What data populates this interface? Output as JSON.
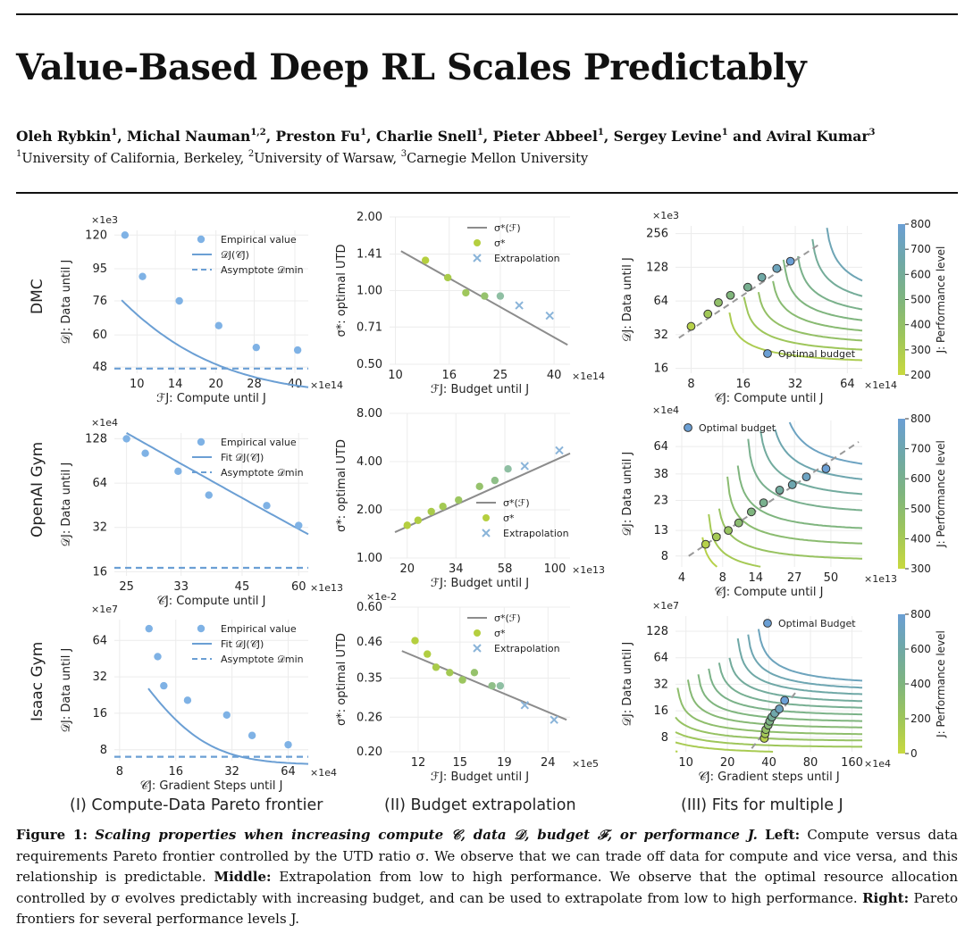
{
  "paper": {
    "title": "Value-Based Deep RL Scales Predictably",
    "authors": [
      {
        "name": "Oleh Rybkin",
        "sup": "1"
      },
      {
        "name": "Michal Nauman",
        "sup": "1,2"
      },
      {
        "name": "Preston Fu",
        "sup": "1"
      },
      {
        "name": "Charlie Snell",
        "sup": "1"
      },
      {
        "name": "Pieter Abbeel",
        "sup": "1"
      },
      {
        "name": "Sergey Levine",
        "sup": "1"
      },
      {
        "name": "Aviral Kumar",
        "sup": "3"
      }
    ],
    "affiliations": [
      {
        "sup": "1",
        "name": "University of California, Berkeley"
      },
      {
        "sup": "2",
        "name": "University of Warsaw"
      },
      {
        "sup": "3",
        "name": "Carnegie Mellon University"
      }
    ]
  },
  "figure": {
    "row_labels": [
      "DMC",
      "OpenAI Gym",
      "Isaac Gym"
    ],
    "column_labels": [
      "(I) Compute-Data Pareto frontier",
      "(II) Budget extrapolation",
      "(III) Fits for multiple J"
    ],
    "caption": {
      "label": "Figure 1:",
      "title": "Scaling properties when increasing compute 𝒞, data 𝒟, budget ℱ, or performance J.",
      "left_label": "Left:",
      "left_text": "Compute versus data requirements Pareto frontier controlled by the UTD ratio σ. We observe that we can trade off data for compute and vice versa, and this relationship is predictable.",
      "middle_label": "Middle:",
      "middle_text": "Extrapolation from low to high performance. We observe that the optimal resource allocation controlled by σ evolves predictably with increasing budget, and can be used to extrapolate from low to high performance.",
      "right_label": "Right:",
      "right_text": "Pareto frontiers for several performance levels J."
    }
  },
  "colors": {
    "blue": "#6b9fd4",
    "point_blue": "#7fb2e5",
    "gray_line": "#8c8c8c",
    "lime": "#b5cf3f",
    "sage": "#8fbfa3",
    "x_marker": "#8ab4d9",
    "cmap": [
      "#c8d93f",
      "#9ec65a",
      "#7fb57e",
      "#6fa8a6",
      "#6b9fd4"
    ]
  },
  "chart_data": [
    {
      "id": "dmc_pareto",
      "type": "line",
      "row": "DMC",
      "column": "I",
      "xscale": "log",
      "yscale": "log",
      "xlim": [
        8.2,
        45
      ],
      "ylim": [
        46,
        124
      ],
      "xticks": [
        10,
        14,
        20,
        28,
        40
      ],
      "xtick_labels": [
        "10",
        "14",
        "20",
        "28",
        "40"
      ],
      "x_mult": "×1e14",
      "yticks": [
        48,
        60,
        76,
        95,
        120
      ],
      "ytick_labels": [
        "48",
        "60",
        "76",
        "95",
        "120"
      ],
      "y_mult": "×1e3",
      "xlabel": "ℱJ: Compute until J",
      "ylabel": "𝒟J: Data until J",
      "legend": [
        "Empirical value",
        "𝒟J(𝒞J)",
        "Asymptote 𝒟min"
      ],
      "legend_pos": "top-right",
      "points": [
        [
          9,
          120
        ],
        [
          10.5,
          90
        ],
        [
          14.5,
          76
        ],
        [
          20.5,
          64
        ],
        [
          28.5,
          55
        ],
        [
          41,
          54
        ]
      ],
      "fit": {
        "a": 39,
        "b": 1200,
        "alpha": 1.6
      },
      "asymptote": 47.5
    },
    {
      "id": "gym_pareto",
      "type": "line",
      "row": "OpenAI Gym",
      "column": "I",
      "xscale": "log",
      "yscale": "log",
      "xlim": [
        23.5,
        63
      ],
      "ylim": [
        15,
        140
      ],
      "xticks": [
        25,
        33,
        45,
        60
      ],
      "xtick_labels": [
        "25",
        "33",
        "45",
        "60"
      ],
      "x_mult": "×1e13",
      "yticks": [
        16,
        32,
        64,
        128
      ],
      "ytick_labels": [
        "16",
        "32",
        "64",
        "128"
      ],
      "y_mult": "×1e4",
      "xlabel": "𝒞J: Compute until J",
      "ylabel": "𝒟J: Data until J",
      "legend": [
        "Empirical value",
        "Fit 𝒟J(𝒞J)",
        "Asymptote 𝒟min"
      ],
      "legend_pos": "top-right",
      "points": [
        [
          25,
          128
        ],
        [
          27.5,
          102
        ],
        [
          32.5,
          77
        ],
        [
          38,
          53
        ],
        [
          51,
          45
        ],
        [
          60,
          33
        ]
      ],
      "fit": {
        "a": 1.5,
        "b": 40000,
        "alpha": 1.76
      },
      "asymptote": 17
    },
    {
      "id": "isaac_pareto",
      "type": "line",
      "row": "Isaac Gym",
      "column": "I",
      "xscale": "log",
      "yscale": "log",
      "xlim": [
        7.5,
        82
      ],
      "ylim": [
        6.5,
        95
      ],
      "xticks": [
        8,
        16,
        32,
        64
      ],
      "xtick_labels": [
        "8",
        "16",
        "32",
        "64"
      ],
      "x_mult": "×1e4",
      "yticks": [
        8,
        16,
        32,
        64
      ],
      "ytick_labels": [
        "8",
        "16",
        "32",
        "64"
      ],
      "y_mult": "×1e7",
      "xlabel": "𝒞J: Gradient Steps until J",
      "ylabel": "𝒟J: Data until J",
      "legend": [
        "Empirical value",
        "Fit 𝒟J(𝒞J)",
        "Asymptote 𝒟min"
      ],
      "legend_pos": "top-right",
      "points": [
        [
          11.5,
          80
        ],
        [
          12.8,
          47
        ],
        [
          13.8,
          27
        ],
        [
          18.5,
          20.5
        ],
        [
          30,
          15.5
        ],
        [
          41,
          10.5
        ],
        [
          64,
          8.8
        ]
      ],
      "fit": {
        "a": 6,
        "b": 11000,
        "alpha": 2.6
      },
      "asymptote": 7
    },
    {
      "id": "dmc_budget",
      "type": "scatter",
      "row": "DMC",
      "column": "II",
      "xscale": "log",
      "yscale": "log",
      "xlim": [
        9.5,
        46
      ],
      "ylim": [
        0.5,
        2.0
      ],
      "xticks": [
        10,
        16,
        25,
        40
      ],
      "xtick_labels": [
        "10",
        "16",
        "25",
        "40"
      ],
      "x_mult": "×1e14",
      "yticks": [
        0.5,
        0.71,
        1.0,
        1.41,
        2.0
      ],
      "ytick_labels": [
        "0.50",
        "0.71",
        "1.00",
        "1.41",
        "2.00"
      ],
      "xlabel": "ℱJ: Budget until J",
      "ylabel": "σ*: optimal UTD",
      "legend": [
        "σ*(ℱ)",
        "σ*",
        "Extrapolation"
      ],
      "legend_pos": "top-right",
      "line": [
        [
          10.5,
          1.45
        ],
        [
          45,
          0.6
        ]
      ],
      "points": [
        [
          13,
          1.33
        ],
        [
          15.8,
          1.13
        ],
        [
          18.5,
          0.98
        ],
        [
          21.8,
          0.95
        ],
        [
          25,
          0.95
        ]
      ],
      "point_colors": [
        "#b5cf3f",
        "#a9cb4a",
        "#9fc75c",
        "#96c26c",
        "#8fbfa3"
      ],
      "extrapolation": [
        [
          29.5,
          0.87
        ],
        [
          38.5,
          0.79
        ]
      ]
    },
    {
      "id": "gym_budget",
      "type": "scatter",
      "row": "OpenAI Gym",
      "column": "II",
      "xscale": "log",
      "yscale": "log",
      "xlim": [
        16.5,
        118
      ],
      "ylim": [
        1.0,
        8.0
      ],
      "xticks": [
        20,
        34,
        58,
        100
      ],
      "xtick_labels": [
        "20",
        "34",
        "58",
        "100"
      ],
      "x_mult": "×1e13",
      "yticks": [
        1.0,
        2.0,
        4.0,
        8.0
      ],
      "ytick_labels": [
        "1.00",
        "2.00",
        "4.00",
        "8.00"
      ],
      "xlabel": "ℱJ: Budget until J",
      "ylabel": "σ*: optimal UTD",
      "legend": [
        "σ*(ℱ)",
        "σ*",
        "Extrapolation"
      ],
      "legend_pos": "bottom-right",
      "line": [
        [
          17.5,
          1.45
        ],
        [
          118,
          4.5
        ]
      ],
      "points": [
        [
          20,
          1.6
        ],
        [
          22.5,
          1.72
        ],
        [
          26,
          1.95
        ],
        [
          29.5,
          2.1
        ],
        [
          35,
          2.3
        ],
        [
          44,
          2.8
        ],
        [
          52,
          3.05
        ],
        [
          60,
          3.6
        ]
      ],
      "point_colors": [
        "#b5cf3f",
        "#b1ce42",
        "#a9cb4a",
        "#a3c953",
        "#9cc660",
        "#96c26c",
        "#8fbf88",
        "#8fbfa3"
      ],
      "extrapolation": [
        [
          72,
          3.75
        ],
        [
          105,
          4.7
        ]
      ]
    },
    {
      "id": "isaac_budget",
      "type": "scatter",
      "row": "Isaac Gym",
      "column": "II",
      "xscale": "log",
      "yscale": "log",
      "xlim": [
        10.3,
        27
      ],
      "ylim": [
        0.2,
        0.6
      ],
      "xticks": [
        12,
        15,
        19,
        24
      ],
      "xtick_labels": [
        "12",
        "15",
        "19",
        "24"
      ],
      "x_mult": "×1e5",
      "yticks": [
        0.2,
        0.26,
        0.35,
        0.46,
        0.6
      ],
      "ytick_labels": [
        "0.20",
        "0.26",
        "0.35",
        "0.46",
        "0.60"
      ],
      "y_mult": "×1e-2",
      "xlabel": "ℱJ: Budget until J",
      "ylabel": "σ*: optimal UTD",
      "legend": [
        "σ*(ℱ)",
        "σ*",
        "Extrapolation"
      ],
      "legend_pos": "top-right",
      "line": [
        [
          11,
          0.43
        ],
        [
          26.5,
          0.255
        ]
      ],
      "points": [
        [
          11.8,
          0.465
        ],
        [
          12.6,
          0.42
        ],
        [
          13.2,
          0.38
        ],
        [
          14.2,
          0.365
        ],
        [
          15.2,
          0.345
        ],
        [
          16.2,
          0.365
        ],
        [
          17.8,
          0.33
        ],
        [
          18.6,
          0.33
        ]
      ],
      "point_colors": [
        "#b5cf3f",
        "#b1ce42",
        "#a9cb4a",
        "#a3c953",
        "#9cc660",
        "#96c26c",
        "#8fbf88",
        "#8fbfa3"
      ],
      "extrapolation": [
        [
          21.2,
          0.285
        ],
        [
          24.8,
          0.255
        ]
      ]
    },
    {
      "id": "dmc_multi",
      "type": "line",
      "row": "DMC",
      "column": "III",
      "xscale": "log",
      "yscale": "log",
      "xlim": [
        6.5,
        78
      ],
      "ylim": [
        14.5,
        300
      ],
      "xticks": [
        8,
        16,
        32,
        64
      ],
      "xtick_labels": [
        "8",
        "16",
        "32",
        "64"
      ],
      "x_mult": "×1e14",
      "yticks": [
        16,
        32,
        64,
        128,
        256
      ],
      "ytick_labels": [
        "16",
        "32",
        "64",
        "128",
        "256"
      ],
      "y_mult": "×1e3",
      "xlabel": "𝒞J: Compute until J",
      "ylabel": "𝒟J: Data until J",
      "legend": [
        "Optimal budget"
      ],
      "legend_pos": "bottom-right",
      "colorbar": {
        "label": "J: Performance level",
        "min": 200,
        "max": 800,
        "ticks": [
          200,
          300,
          400,
          500,
          600,
          700,
          800
        ]
      },
      "curves": [
        {
          "J": 300,
          "a": 13,
          "b": 18,
          "alpha": 3.6
        },
        {
          "J": 350,
          "a": 16,
          "b": 22,
          "alpha": 3.4
        },
        {
          "J": 400,
          "a": 19,
          "b": 26,
          "alpha": 3.2
        },
        {
          "J": 450,
          "a": 23,
          "b": 31,
          "alpha": 3.0
        },
        {
          "J": 500,
          "a": 27,
          "b": 37,
          "alpha": 2.8
        },
        {
          "J": 550,
          "a": 32,
          "b": 44,
          "alpha": 2.6
        },
        {
          "J": 600,
          "a": 39,
          "b": 53,
          "alpha": 2.4
        },
        {
          "J": 700,
          "a": 47,
          "b": 64,
          "alpha": 2.2
        }
      ],
      "optimal": [
        [
          8,
          38
        ],
        [
          10,
          49
        ],
        [
          11.5,
          62
        ],
        [
          13.5,
          72
        ],
        [
          17,
          85
        ],
        [
          20.5,
          104
        ],
        [
          25,
          125
        ],
        [
          30,
          145
        ]
      ],
      "optimal_line": [
        [
          6.8,
          30
        ],
        [
          45,
          210
        ]
      ]
    },
    {
      "id": "gym_multi",
      "type": "line",
      "row": "OpenAI Gym",
      "column": "III",
      "xscale": "log",
      "yscale": "log",
      "xlim": [
        3.6,
        85
      ],
      "ylim": [
        6.5,
        105
      ],
      "xticks": [
        4,
        8,
        14,
        27,
        50
      ],
      "xtick_labels": [
        "4",
        "8",
        "14",
        "27",
        "50"
      ],
      "x_mult": "×1e13",
      "yticks": [
        8,
        13,
        23,
        38,
        64
      ],
      "ytick_labels": [
        "8",
        "13",
        "23",
        "38",
        "64"
      ],
      "y_mult": "×1e4",
      "xlabel": "𝒞J: Compute until J",
      "ylabel": "𝒟J: Data until J",
      "legend": [
        "Optimal budget"
      ],
      "legend_pos": "top-left",
      "colorbar": {
        "label": "J: Performance level",
        "min": 300,
        "max": 800,
        "ticks": [
          300,
          400,
          500,
          600,
          700,
          800
        ]
      },
      "curves": [
        {
          "J": 350,
          "a": 5.5,
          "b": 4.4,
          "alpha": 3.6
        },
        {
          "J": 400,
          "a": 6.2,
          "b": 5.6,
          "alpha": 3.4
        },
        {
          "J": 450,
          "a": 7.2,
          "b": 7.4,
          "alpha": 3.2
        },
        {
          "J": 500,
          "a": 8.5,
          "b": 9.8,
          "alpha": 3.0
        },
        {
          "J": 550,
          "a": 10,
          "b": 13,
          "alpha": 2.8
        },
        {
          "J": 600,
          "a": 12,
          "b": 18,
          "alpha": 2.6
        },
        {
          "J": 650,
          "a": 14.5,
          "b": 24,
          "alpha": 2.4
        },
        {
          "J": 700,
          "a": 17.5,
          "b": 31,
          "alpha": 2.2
        },
        {
          "J": 750,
          "a": 21,
          "b": 40,
          "alpha": 2.0
        }
      ],
      "optimal": [
        [
          6,
          10
        ],
        [
          7.2,
          11.5
        ],
        [
          8.8,
          13
        ],
        [
          10.5,
          15
        ],
        [
          13,
          18.5
        ],
        [
          16,
          22
        ],
        [
          21,
          28
        ],
        [
          26,
          31
        ],
        [
          33,
          36
        ],
        [
          46,
          42
        ]
      ],
      "optimal_line": [
        [
          4.5,
          8
        ],
        [
          80,
          70
        ]
      ]
    },
    {
      "id": "isaac_multi",
      "type": "line",
      "row": "Isaac Gym",
      "column": "III",
      "xscale": "log",
      "yscale": "log",
      "xlim": [
        8.4,
        190
      ],
      "ylim": [
        5.5,
        190
      ],
      "xticks": [
        10,
        20,
        40,
        80,
        160
      ],
      "xtick_labels": [
        "10",
        "20",
        "40",
        "80",
        "160"
      ],
      "x_mult": "×1e4",
      "yticks": [
        8,
        16,
        32,
        64,
        128
      ],
      "ytick_labels": [
        "8",
        "16",
        "32",
        "64",
        "128"
      ],
      "y_mult": "×1e7",
      "xlabel": "𝒞J: Gradient steps until J",
      "ylabel": "𝒟J: Data until J",
      "legend": [
        "Optimal Budget"
      ],
      "legend_pos": "top-right",
      "colorbar": {
        "label": "J: Performance level",
        "min": 0,
        "max": 800,
        "ticks": [
          0,
          200,
          400,
          600,
          800
        ]
      },
      "curves": [
        {
          "J": 100,
          "a": 4.5,
          "b": 4.5,
          "alpha": 3.6
        },
        {
          "J": 150,
          "a": 5.3,
          "b": 5.3,
          "alpha": 3.5
        },
        {
          "J": 200,
          "a": 6.2,
          "b": 6.2,
          "alpha": 3.4
        },
        {
          "J": 250,
          "a": 7.3,
          "b": 7.3,
          "alpha": 3.3
        },
        {
          "J": 300,
          "a": 8.6,
          "b": 8.6,
          "alpha": 3.2
        },
        {
          "J": 350,
          "a": 10.2,
          "b": 10.2,
          "alpha": 3.1
        },
        {
          "J": 400,
          "a": 12,
          "b": 12,
          "alpha": 3.0
        },
        {
          "J": 450,
          "a": 14.2,
          "b": 14.2,
          "alpha": 2.9
        },
        {
          "J": 500,
          "a": 16.8,
          "b": 16.8,
          "alpha": 2.8
        },
        {
          "J": 550,
          "a": 19.8,
          "b": 19.8,
          "alpha": 2.7
        },
        {
          "J": 600,
          "a": 23.5,
          "b": 23.5,
          "alpha": 2.6
        },
        {
          "J": 650,
          "a": 27.5,
          "b": 27.5,
          "alpha": 2.5
        },
        {
          "J": 700,
          "a": 32.5,
          "b": 32.5,
          "alpha": 2.4
        }
      ],
      "optimal": [
        [
          37,
          7.8
        ],
        [
          37.5,
          8.8
        ],
        [
          38,
          9.8
        ],
        [
          39.5,
          11
        ],
        [
          40.5,
          12.2
        ],
        [
          42,
          13.6
        ],
        [
          44,
          15
        ],
        [
          47.5,
          16.8
        ],
        [
          52,
          21
        ]
      ],
      "optimal_line": [
        [
          30,
          6
        ],
        [
          65,
          28
        ]
      ]
    }
  ]
}
